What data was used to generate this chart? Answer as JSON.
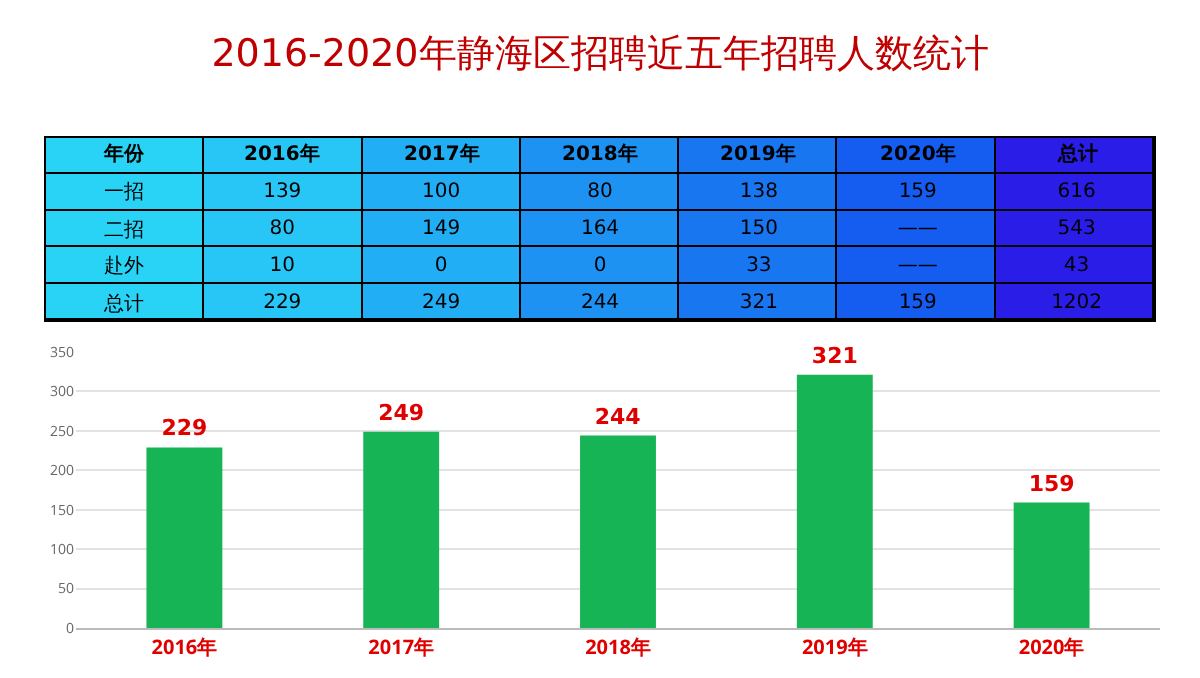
{
  "chart_data": [
    {
      "type": "heatmap",
      "title": "2016-2020年静海区招聘近五年招聘人数统计",
      "annotations": [
        "年份"
      ],
      "categories": [
        "2016年",
        "2017年",
        "2018年",
        "2019年",
        "2020年",
        "总计"
      ],
      "y_categories": [
        "一招",
        "二招",
        "赴外",
        "总计"
      ],
      "colors": [
        "#27c6f6",
        "#22aef5",
        "#1d92f3",
        "#1976f1",
        "#155cf0",
        "#2a1de8"
      ],
      "cells": [
        [
          139,
          100,
          80,
          138,
          159,
          616
        ],
        [
          80,
          149,
          164,
          150,
          null,
          543
        ],
        [
          10,
          0,
          0,
          33,
          null,
          43
        ],
        [
          229,
          249,
          244,
          321,
          159,
          1202
        ]
      ],
      "cell_labels": [
        [
          "139",
          "100",
          "80",
          "138",
          "159",
          "616"
        ],
        [
          "80",
          "149",
          "164",
          "150",
          "——",
          "543"
        ],
        [
          "10",
          "0",
          "0",
          "33",
          "——",
          "43"
        ],
        [
          "229",
          "249",
          "244",
          "321",
          "159",
          "1202"
        ]
      ]
    },
    {
      "type": "bar",
      "categories": [
        "2016年",
        "2017年",
        "2018年",
        "2019年",
        "2020年"
      ],
      "values": [
        229,
        249,
        244,
        321,
        159
      ],
      "color": "#16b455",
      "data_labels": true,
      "ylim": [
        0,
        350
      ],
      "yticks": [
        0,
        50,
        100,
        150,
        200,
        250,
        300,
        350
      ],
      "grid": "y"
    }
  ]
}
